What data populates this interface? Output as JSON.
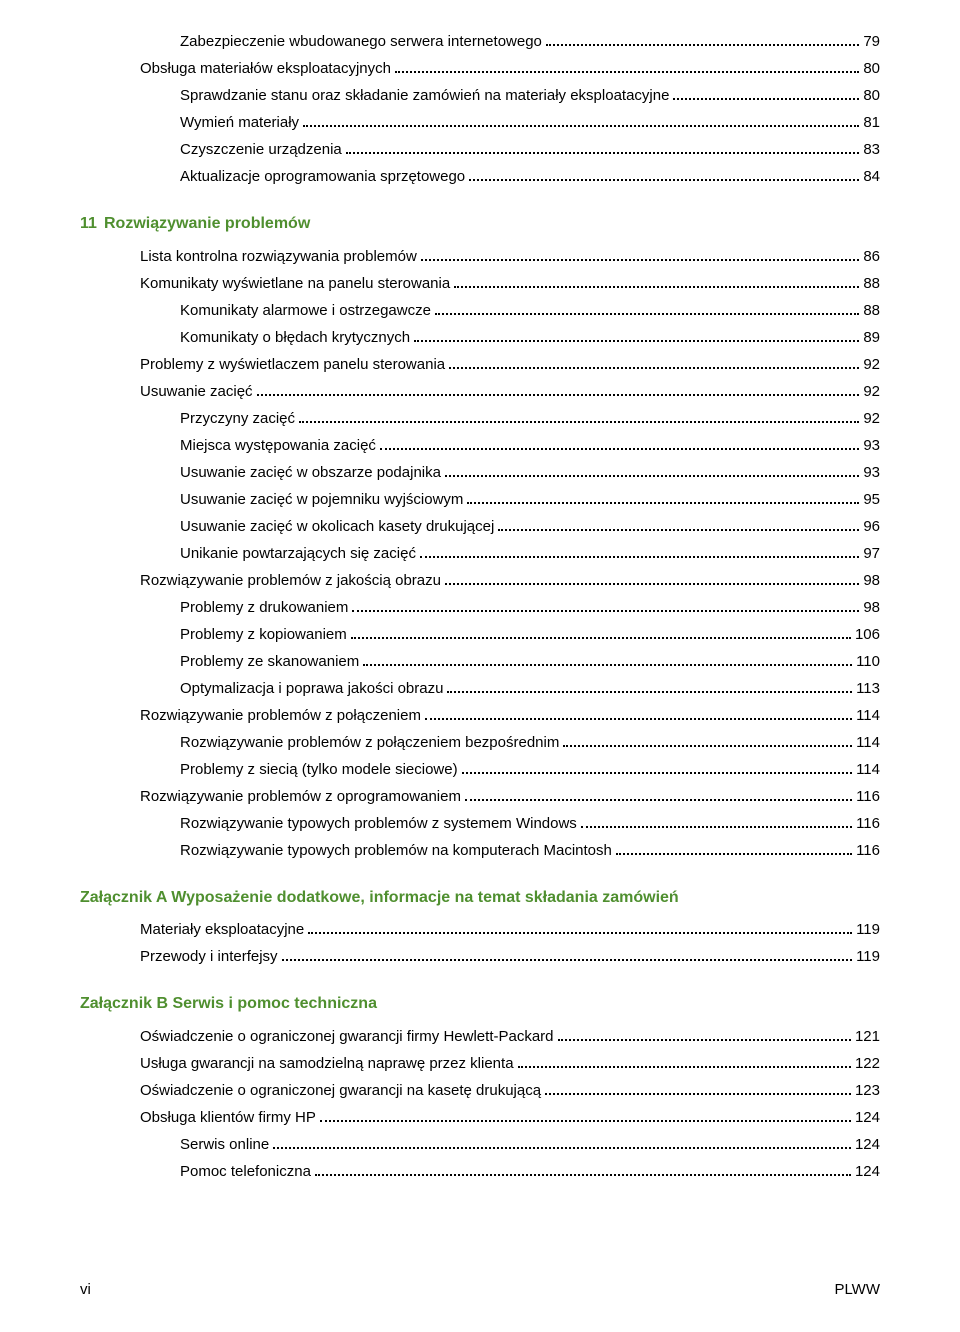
{
  "section_pre": [
    {
      "text": "Zabezpieczenie wbudowanego serwera internetowego",
      "page": "79",
      "indent": 2
    },
    {
      "text": "Obsługa materiałów eksploatacyjnych",
      "page": "80",
      "indent": 1
    },
    {
      "text": "Sprawdzanie stanu oraz składanie zamówień na materiały eksploatacyjne",
      "page": "80",
      "indent": 2
    },
    {
      "text": "Wymień materiały",
      "page": "81",
      "indent": 2
    },
    {
      "text": "Czyszczenie urządzenia",
      "page": "83",
      "indent": 2
    },
    {
      "text": "Aktualizacje oprogramowania sprzętowego",
      "page": "84",
      "indent": 2
    }
  ],
  "chapter11": {
    "num": "11",
    "title": "Rozwiązywanie problemów"
  },
  "section_11": [
    {
      "text": "Lista kontrolna rozwiązywania problemów",
      "page": "86",
      "indent": 1
    },
    {
      "text": "Komunikaty wyświetlane na panelu sterowania",
      "page": "88",
      "indent": 1
    },
    {
      "text": "Komunikaty alarmowe i ostrzegawcze",
      "page": "88",
      "indent": 2
    },
    {
      "text": "Komunikaty o błędach krytycznych",
      "page": "89",
      "indent": 2
    },
    {
      "text": "Problemy z wyświetlaczem panelu sterowania",
      "page": "92",
      "indent": 1
    },
    {
      "text": "Usuwanie zacięć",
      "page": "92",
      "indent": 1
    },
    {
      "text": "Przyczyny zacięć",
      "page": "92",
      "indent": 2
    },
    {
      "text": "Miejsca występowania zacięć",
      "page": "93",
      "indent": 2
    },
    {
      "text": "Usuwanie zacięć w obszarze podajnika",
      "page": "93",
      "indent": 2
    },
    {
      "text": "Usuwanie zacięć w pojemniku wyjściowym",
      "page": "95",
      "indent": 2
    },
    {
      "text": "Usuwanie zacięć w okolicach kasety drukującej",
      "page": "96",
      "indent": 2
    },
    {
      "text": "Unikanie powtarzających się zacięć",
      "page": "97",
      "indent": 2
    },
    {
      "text": "Rozwiązywanie problemów z jakością obrazu",
      "page": "98",
      "indent": 1
    },
    {
      "text": "Problemy z drukowaniem",
      "page": "98",
      "indent": 2
    },
    {
      "text": "Problemy z kopiowaniem",
      "page": "106",
      "indent": 2
    },
    {
      "text": "Problemy ze skanowaniem",
      "page": "110",
      "indent": 2
    },
    {
      "text": "Optymalizacja i poprawa jakości obrazu",
      "page": "113",
      "indent": 2
    },
    {
      "text": "Rozwiązywanie problemów z połączeniem",
      "page": "114",
      "indent": 1
    },
    {
      "text": "Rozwiązywanie problemów z połączeniem bezpośrednim",
      "page": "114",
      "indent": 2
    },
    {
      "text": "Problemy z siecią (tylko modele sieciowe)",
      "page": "114",
      "indent": 2
    },
    {
      "text": "Rozwiązywanie problemów z oprogramowaniem",
      "page": "116",
      "indent": 1
    },
    {
      "text": "Rozwiązywanie typowych problemów z systemem Windows",
      "page": "116",
      "indent": 2
    },
    {
      "text": "Rozwiązywanie typowych problemów na komputerach Macintosh",
      "page": "116",
      "indent": 2
    }
  ],
  "appendixA": {
    "title": "Załącznik A  Wyposażenie dodatkowe, informacje na temat składania zamówień"
  },
  "section_A": [
    {
      "text": "Materiały eksploatacyjne",
      "page": "119",
      "indent": 1
    },
    {
      "text": "Przewody i interfejsy",
      "page": "119",
      "indent": 1
    }
  ],
  "appendixB": {
    "title": "Załącznik B  Serwis i pomoc techniczna"
  },
  "section_B": [
    {
      "text": "Oświadczenie o ograniczonej gwarancji firmy Hewlett-Packard",
      "page": "121",
      "indent": 1
    },
    {
      "text": "Usługa gwarancji na samodzielną naprawę przez klienta",
      "page": "122",
      "indent": 1
    },
    {
      "text": "Oświadczenie o ograniczonej gwarancji na kasetę drukującą",
      "page": "123",
      "indent": 1
    },
    {
      "text": "Obsługa klientów firmy HP",
      "page": "124",
      "indent": 1
    },
    {
      "text": "Serwis online",
      "page": "124",
      "indent": 2
    },
    {
      "text": "Pomoc telefoniczna",
      "page": "124",
      "indent": 2
    }
  ],
  "footer": {
    "left": "vi",
    "right": "PLWW"
  }
}
